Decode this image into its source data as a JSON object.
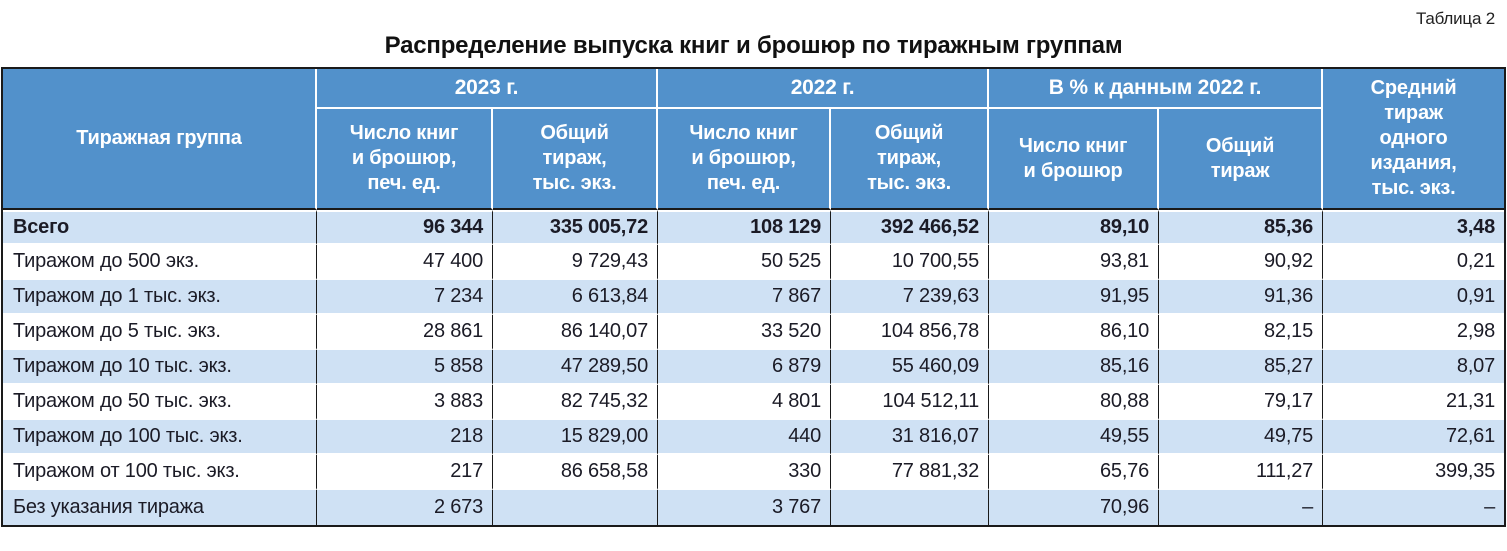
{
  "page": {
    "caption": "Таблица 2",
    "title": "Распределение выпуска книг и брошюр по тиражным группам"
  },
  "colors": {
    "header_bg": "#5291CB",
    "header_text": "#FFFFFF",
    "row_alt_bg": "#CFE1F4",
    "row_bg": "#FFFFFF",
    "text": "#1B1B26",
    "border_dark": "#1A1A1A",
    "border_light": "#FFFFFF"
  },
  "table": {
    "header": {
      "row_label": "Тиражная группа",
      "groups": [
        {
          "label": "2023 г."
        },
        {
          "label": "2022 г."
        },
        {
          "label": "В % к данным 2022 г."
        }
      ],
      "sub": [
        "Число книг\nи брошюр,\nпеч. ед.",
        "Общий\nтираж,\nтыс. экз.",
        "Число книг\nи брошюр,\nпеч. ед.",
        "Общий\nтираж,\nтыс. экз.",
        "Число книг\nи брошюр",
        "Общий\nтираж"
      ],
      "avg_run": "Средний\nтираж\nодного\nиздания,\nтыс. экз."
    },
    "rows": [
      {
        "label": "Всего",
        "bold": true,
        "values": [
          "96 344",
          "335 005,72",
          "108 129",
          "392 466,52",
          "89,10",
          "85,36",
          "3,48"
        ]
      },
      {
        "label": "Тиражом до 500 экз.",
        "values": [
          "47 400",
          "9 729,43",
          "50 525",
          "10 700,55",
          "93,81",
          "90,92",
          "0,21"
        ]
      },
      {
        "label": "Тиражом до 1 тыс. экз.",
        "values": [
          "7 234",
          "6 613,84",
          "7 867",
          "7 239,63",
          "91,95",
          "91,36",
          "0,91"
        ]
      },
      {
        "label": "Тиражом до 5 тыс. экз.",
        "values": [
          "28 861",
          "86 140,07",
          "33 520",
          "104 856,78",
          "86,10",
          "82,15",
          "2,98"
        ]
      },
      {
        "label": "Тиражом до 10 тыс. экз.",
        "values": [
          "5 858",
          "47 289,50",
          "6 879",
          "55 460,09",
          "85,16",
          "85,27",
          "8,07"
        ]
      },
      {
        "label": "Тиражом до 50 тыс. экз.",
        "values": [
          "3 883",
          "82 745,32",
          "4 801",
          "104 512,11",
          "80,88",
          "79,17",
          "21,31"
        ]
      },
      {
        "label": "Тиражом до 100 тыс. экз.",
        "values": [
          "218",
          "15 829,00",
          "440",
          "31 816,07",
          "49,55",
          "49,75",
          "72,61"
        ]
      },
      {
        "label": "Тиражом от 100 тыс. экз.",
        "values": [
          "217",
          "86 658,58",
          "330",
          "77 881,32",
          "65,76",
          "111,27",
          "399,35"
        ]
      },
      {
        "label": "Без указания тиража",
        "values": [
          "2 673",
          "",
          "3 767",
          "",
          "70,96",
          "–",
          "–"
        ]
      }
    ]
  }
}
